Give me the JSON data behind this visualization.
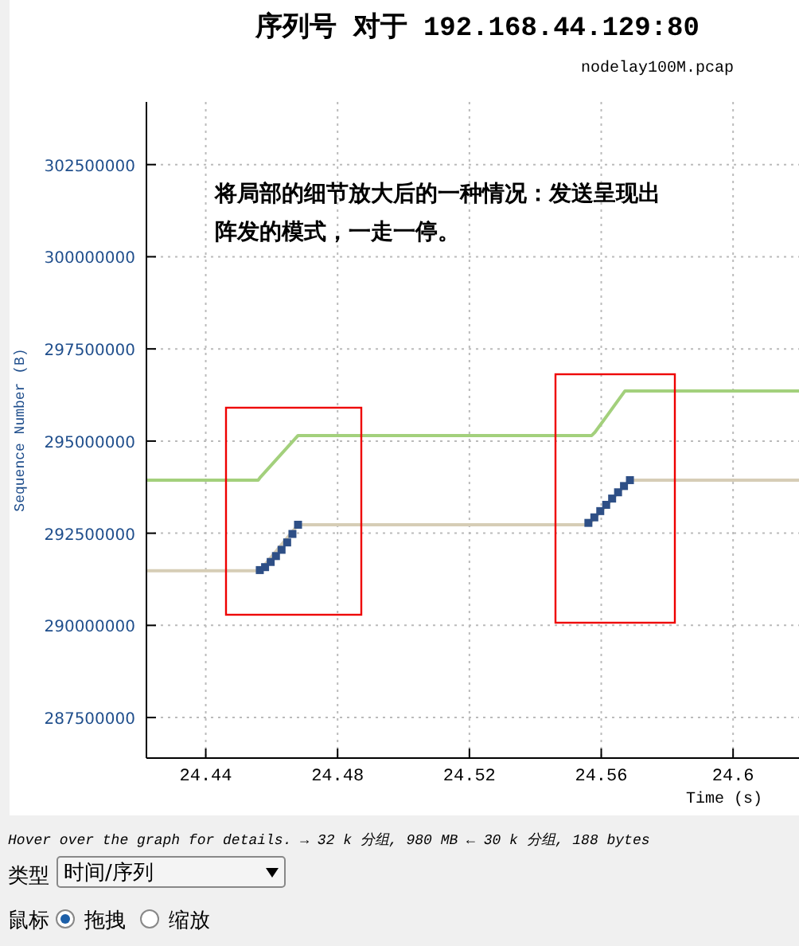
{
  "chart_data": {
    "type": "line",
    "title": "序列号 对于 192.168.44.129:80",
    "subtitle": "nodelay100M.pcap",
    "xlabel": "Time (s)",
    "ylabel": "Sequence Number (B)",
    "xlim": [
      24.422,
      24.62
    ],
    "xticks": [
      24.44,
      24.48,
      24.52,
      24.56,
      24.6
    ],
    "ylim": [
      286400000,
      304200000
    ],
    "yticks": [
      287500000,
      290000000,
      292500000,
      295000000,
      297500000,
      300000000,
      302500000
    ],
    "grid": true,
    "series": [
      {
        "color": "#a3d07c",
        "x": [
          24.422,
          24.4559,
          24.4564,
          24.468,
          24.5571,
          24.5581,
          24.5672,
          24.62
        ],
        "values": [
          293940000,
          293940000,
          294000000,
          295150000,
          295150000,
          295240000,
          296360000,
          296360000
        ]
      },
      {
        "color": "#d6cdb6",
        "x": [
          24.422,
          24.4564,
          24.468,
          24.5561,
          24.5687,
          24.62
        ],
        "values": [
          291480000,
          291480000,
          292730000,
          292730000,
          293940000,
          293940000
        ]
      },
      {
        "type": "scatter",
        "marker": "square",
        "color": "#2e4f86",
        "x": [
          24.4564,
          24.458,
          24.4597,
          24.4613,
          24.463,
          24.4647,
          24.4663,
          24.468,
          24.5561,
          24.5579,
          24.5597,
          24.5615,
          24.5633,
          24.5651,
          24.5669,
          24.5687
        ],
        "values": [
          291500000,
          291580000,
          291720000,
          291880000,
          292050000,
          292250000,
          292480000,
          292730000,
          292780000,
          292930000,
          293100000,
          293270000,
          293440000,
          293610000,
          293780000,
          293940000
        ]
      }
    ],
    "annotations": [
      "将局部的细节放大后的一种情况：发送呈现出阵发的模式，一走一停。",
      "Hover over the graph for details. → 32 k 分组, 980 MB ← 30 k 分组, 188 bytes",
      "类型",
      "时间/序列",
      "鼠标",
      "拖拽",
      "缩放"
    ]
  }
}
